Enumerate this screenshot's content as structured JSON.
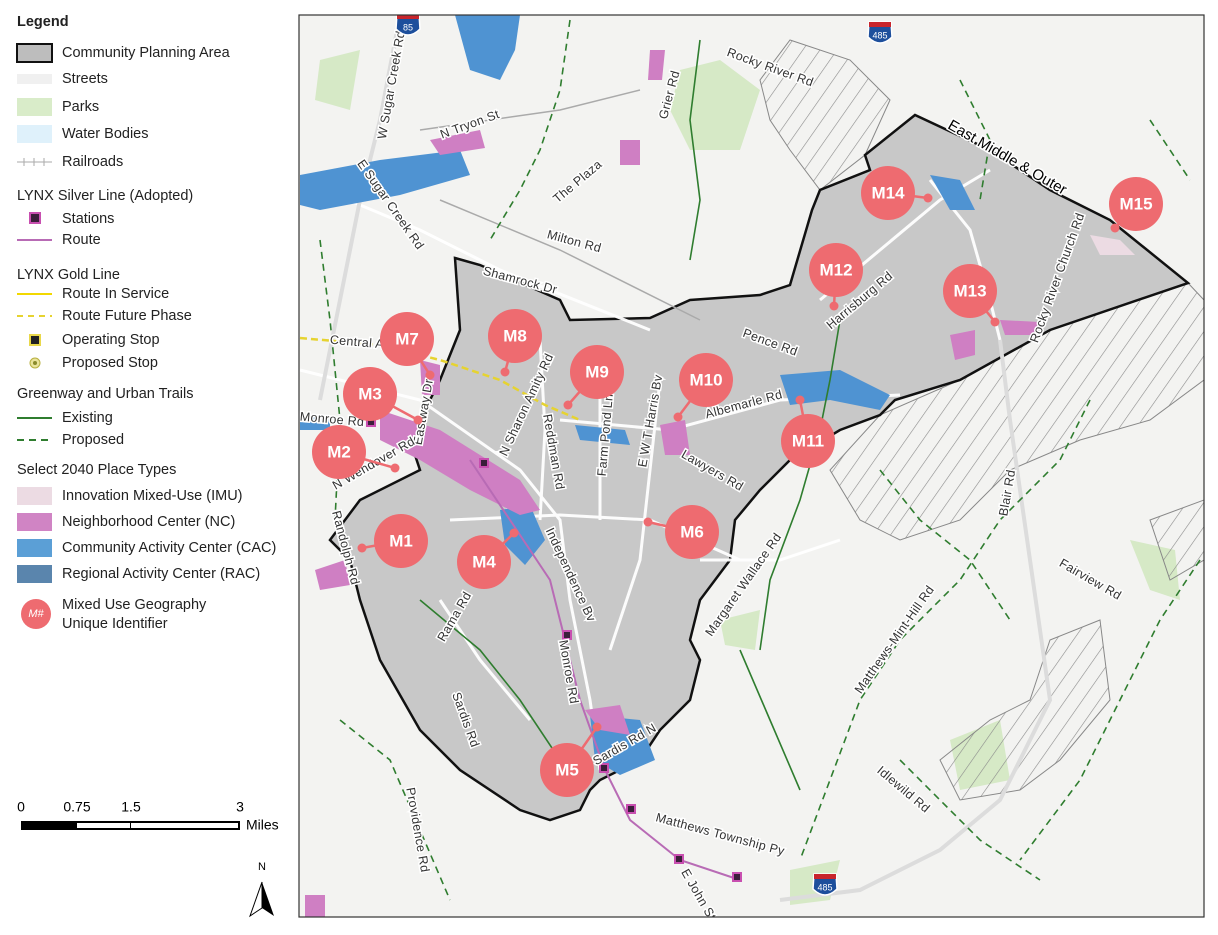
{
  "legend": {
    "title": "Legend",
    "base": [
      "Community Planning Area",
      "Streets",
      "Parks",
      "Water Bodies",
      "Railroads"
    ],
    "silver": {
      "title": "LYNX Silver Line (Adopted)",
      "items": [
        "Stations",
        "Route"
      ]
    },
    "gold": {
      "title": "LYNX Gold Line",
      "items": [
        "Route In Service",
        "Route Future Phase",
        "Operating Stop",
        "Proposed Stop"
      ]
    },
    "greenway": {
      "title": "Greenway and Urban Trails",
      "items": [
        "Existing",
        "Proposed"
      ]
    },
    "place_types": {
      "title": "Select 2040 Place Types",
      "items": [
        "Innovation Mixed-Use (IMU)",
        "Neighborhood Center (NC)",
        "Community Activity Center (CAC)",
        "Regional Activity Center (RAC)"
      ]
    },
    "mixed_use": {
      "symbol": "M#",
      "label": [
        "Mixed Use Geography",
        "Unique Identifier"
      ]
    }
  },
  "scale_bar": {
    "labels": [
      "0",
      "0.75",
      "1.5",
      "3"
    ],
    "unit": "Miles"
  },
  "north": "N",
  "map": {
    "area_label": "East Middle & Outer",
    "shields": [
      "85",
      "485",
      "485"
    ],
    "markers": [
      "M1",
      "M2",
      "M3",
      "M4",
      "M5",
      "M6",
      "M7",
      "M8",
      "M9",
      "M10",
      "M11",
      "M12",
      "M13",
      "M14",
      "M15"
    ],
    "roads": [
      "W Sugar Creek Rd",
      "N Tryon St",
      "E Sugar Creek Rd",
      "The Plaza",
      "Milton Rd",
      "Grier Rd",
      "Rocky River Rd",
      "Shamrock Dr",
      "Central Av",
      "Eastway Dr",
      "N Sharon Amity Rd",
      "Reddman Rd",
      "Farm Pond Ln",
      "E W T Harris Bv",
      "Albemarle Rd",
      "Pence Rd",
      "Harrisburg Rd",
      "Rocky River Church Rd",
      "Monroe Rd",
      "N Wendover Rd",
      "Randolph Rd",
      "Lawyers Rd",
      "Independence Bv",
      "Margaret Wallace Rd",
      "Rama Rd",
      "Monroe Rd",
      "Sardis Rd",
      "Sardis Rd N",
      "Providence Rd",
      "Matthews Township Py",
      "E John St",
      "Matthews-Mint-Hill Rd",
      "Blair Rd",
      "Fairview Rd",
      "Idlewild Rd"
    ]
  }
}
